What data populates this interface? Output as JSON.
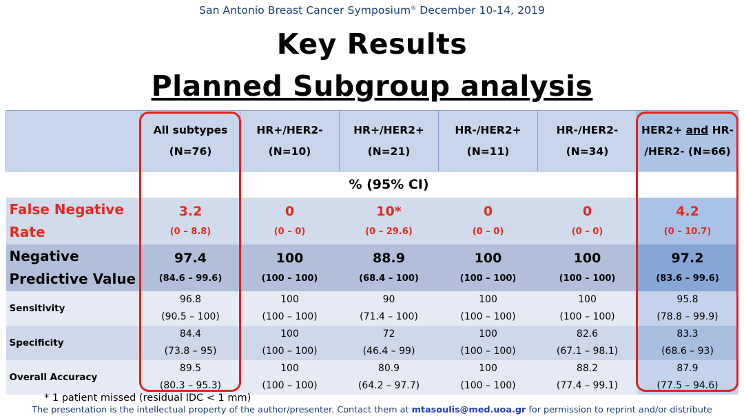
{
  "header": {
    "conference": "San Antonio Breast Cancer Symposium",
    "reg_mark": "®",
    "dates": " December 10-14, 2019",
    "title_line1": "Key Results",
    "title_line2": "Planned Subgroup analysis"
  },
  "table": {
    "columns": [
      {
        "line1": "All subtypes",
        "line2": "(N=76)"
      },
      {
        "line1": "HR+/HER2-",
        "line2": "(N=10)"
      },
      {
        "line1": "HR+/HER2+",
        "line2": "(N=21)"
      },
      {
        "line1": "HR-/HER2+",
        "line2": "(N=11)"
      },
      {
        "line1": "HR-/HER2-",
        "line2": "(N=34)"
      },
      {
        "line1a": "HER2+ ",
        "line1b": "and",
        "line1c": " HR-",
        "line2": "/HER2- (N=66)"
      }
    ],
    "ci_label": "% (95% CI)",
    "rows": {
      "fnr": {
        "label1": "False Negative",
        "label2": "Rate",
        "values": [
          "3.2",
          "0",
          "10*",
          "0",
          "0",
          "4.2"
        ],
        "cis": [
          "(0 – 8.8)",
          "(0 – 0)",
          "(0 – 29.6)",
          "(0 – 0)",
          "(0 – 0)",
          "(0 – 10.7)"
        ]
      },
      "npv": {
        "label1": "Negative",
        "label2": "Predictive Value",
        "values": [
          "97.4",
          "100",
          "88.9",
          "100",
          "100",
          "97.2"
        ],
        "cis": [
          "(84.6 – 99.6)",
          "(100 – 100)",
          "(68.4 – 100)",
          "(100 – 100)",
          "(100 – 100)",
          "(83.6 – 99.6)"
        ]
      },
      "sensitivity": {
        "label": "Sensitivity",
        "values": [
          "96.8",
          "100",
          "90",
          "100",
          "100",
          "95.8"
        ],
        "cis": [
          "(90.5 – 100)",
          "(100 – 100)",
          "(71.4 – 100)",
          "(100 – 100)",
          "(100 – 100)",
          "(78.8 – 99.9)"
        ]
      },
      "specificity": {
        "label": "Specificity",
        "values": [
          "84.4",
          "100",
          "72",
          "100",
          "82.6",
          "83.3"
        ],
        "cis": [
          "(73.8 – 95)",
          "(100 – 100)",
          "(46.4 – 99)",
          "(100 – 100)",
          "(67.1 – 98.1)",
          "(68.6 – 93)"
        ]
      },
      "accuracy": {
        "label": "Overall Accuracy",
        "values": [
          "89.5",
          "100",
          "80.9",
          "100",
          "88.2",
          "87.9"
        ],
        "cis": [
          "(80.3 – 95.3)",
          "(100 – 100)",
          "(64.2 – 97.7)",
          "(100 – 100)",
          "(77.4 – 99.1)",
          "(77.5 – 94.6)"
        ]
      }
    }
  },
  "footnote": "* 1 patient missed (residual IDC < 1 mm)",
  "footer": {
    "before": "The presentation is the intellectual property of the author/presenter. Contact them at ",
    "email": "mtasoulis@med.uoa.gr",
    "after": " for permission to reprint and/or distribute"
  },
  "colors": {
    "highlight_frame": "#e0221c",
    "fnr_text": "#e42a20",
    "header_blue": "#1f3c78"
  }
}
